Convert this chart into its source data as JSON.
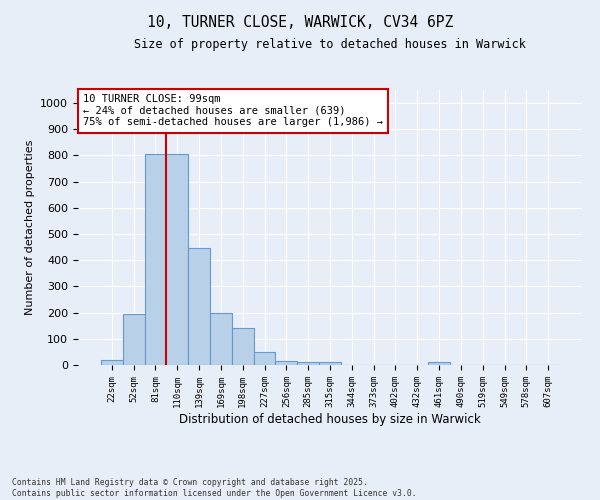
{
  "title_line1": "10, TURNER CLOSE, WARWICK, CV34 6PZ",
  "title_line2": "Size of property relative to detached houses in Warwick",
  "xlabel": "Distribution of detached houses by size in Warwick",
  "ylabel": "Number of detached properties",
  "categories": [
    "22sqm",
    "52sqm",
    "81sqm",
    "110sqm",
    "139sqm",
    "169sqm",
    "198sqm",
    "227sqm",
    "256sqm",
    "285sqm",
    "315sqm",
    "344sqm",
    "373sqm",
    "402sqm",
    "432sqm",
    "461sqm",
    "490sqm",
    "519sqm",
    "549sqm",
    "578sqm",
    "607sqm"
  ],
  "values": [
    18,
    195,
    805,
    805,
    445,
    198,
    140,
    50,
    17,
    13,
    12,
    0,
    0,
    0,
    0,
    10,
    0,
    0,
    0,
    0,
    0
  ],
  "bar_color": "#b8d0e8",
  "bar_edge_color": "#6699cc",
  "vline_color": "#cc0000",
  "annotation_box_text": "10 TURNER CLOSE: 99sqm\n← 24% of detached houses are smaller (639)\n75% of semi-detached houses are larger (1,986) →",
  "box_color": "#cc0000",
  "ylim": [
    0,
    1050
  ],
  "yticks": [
    0,
    100,
    200,
    300,
    400,
    500,
    600,
    700,
    800,
    900,
    1000
  ],
  "background_color": "#e8eef8",
  "grid_color": "#ffffff",
  "footer_line1": "Contains HM Land Registry data © Crown copyright and database right 2025.",
  "footer_line2": "Contains public sector information licensed under the Open Government Licence v3.0."
}
